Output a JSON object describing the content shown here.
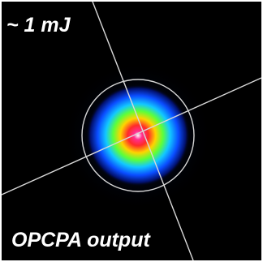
{
  "labels": {
    "energy": "~ 1 mJ",
    "output": "OPCPA output"
  },
  "colors": {
    "background": "#000000",
    "text": "#ffffff",
    "crosshair": "#d8d8d8",
    "beam_core": "#ffffff",
    "beam_peak": "#ff1f7a",
    "beam_mid": "#ffe600",
    "beam_outer": "#1a8cff"
  },
  "icons": {
    "crosshair": "crosshair-icon",
    "aperture_circle": "aperture-circle-icon"
  }
}
